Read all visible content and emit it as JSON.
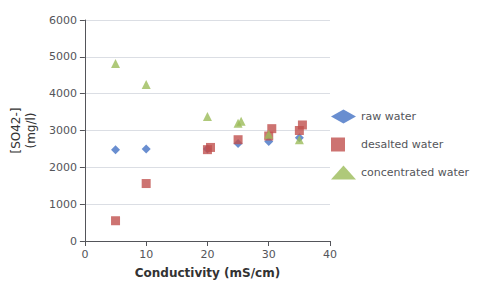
{
  "chart_data": {
    "type": "scatter",
    "xlabel": "Conductivity (mS/cm)",
    "ylabel": "[SO42-]\n(mg/l)",
    "series": [
      {
        "name": "raw water",
        "color": "#4472c4",
        "marker": "diamond",
        "x": [
          5,
          10,
          20,
          25,
          30,
          35
        ],
        "values": [
          2480,
          2500,
          2500,
          2650,
          2700,
          2800
        ]
      },
      {
        "name": "desalted water",
        "color": "#c0504d",
        "marker": "square",
        "x": [
          5,
          10,
          20,
          20.5,
          25,
          30,
          30.5,
          35,
          35.5
        ],
        "values": [
          550,
          1560,
          2480,
          2540,
          2750,
          2850,
          3050,
          3000,
          3150
        ]
      },
      {
        "name": "concentrated water",
        "color": "#9bbb59",
        "marker": "triangle",
        "x": [
          5,
          10,
          20,
          25,
          25.5,
          30,
          35
        ],
        "values": [
          4820,
          4250,
          3380,
          3200,
          3250,
          2900,
          2750
        ]
      }
    ],
    "xlim": [
      0,
      40
    ],
    "xticks": [
      0,
      10,
      20,
      30,
      40
    ],
    "ylim": [
      0,
      6000
    ],
    "yticks": [
      0,
      1000,
      2000,
      3000,
      4000,
      5000,
      6000
    ],
    "grid": "y",
    "legend": "right"
  }
}
